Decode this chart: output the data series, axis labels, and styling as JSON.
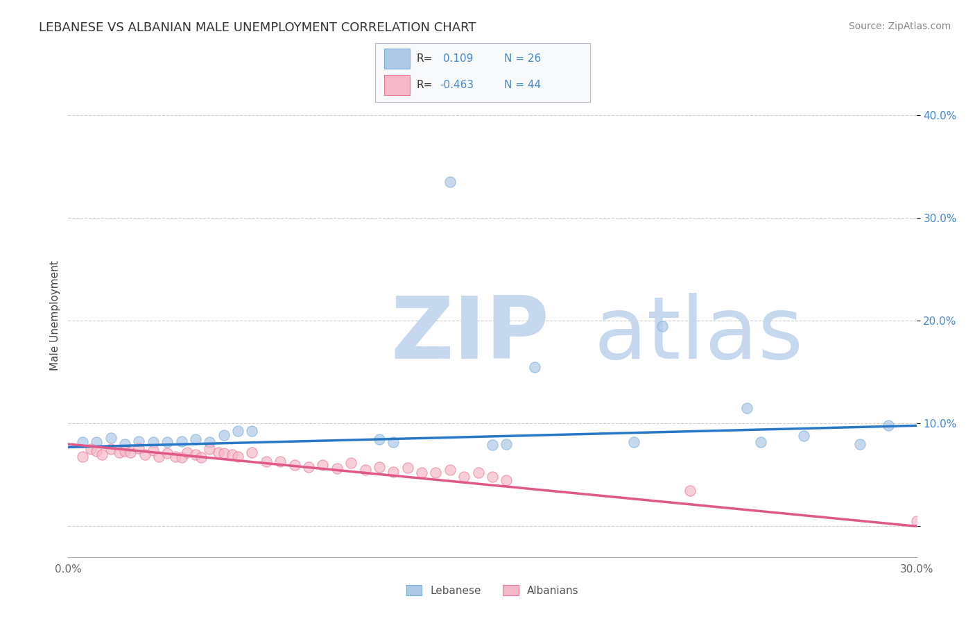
{
  "title": "LEBANESE VS ALBANIAN MALE UNEMPLOYMENT CORRELATION CHART",
  "source_text": "Source: ZipAtlas.com",
  "ylabel": "Male Unemployment",
  "xmin": 0.0,
  "xmax": 0.3,
  "ymin": -0.03,
  "ymax": 0.44,
  "yticks": [
    0.0,
    0.1,
    0.2,
    0.3,
    0.4
  ],
  "ytick_labels": [
    "",
    "10.0%",
    "20.0%",
    "30.0%",
    "40.0%"
  ],
  "xticks": [
    0.0,
    0.3
  ],
  "xtick_labels": [
    "0.0%",
    "30.0%"
  ],
  "background_color": "#ffffff",
  "grid_color": "#cccccc",
  "watermark_zip": "ZIP",
  "watermark_atlas": "atlas",
  "watermark_color_zip": "#c5d8ee",
  "watermark_color_atlas": "#c5d8ee",
  "legend_r1_label": "R = ",
  "legend_r1_val": " 0.109",
  "legend_n1_label": "N = ",
  "legend_n1_val": "26",
  "legend_r2_label": "R = ",
  "legend_r2_val": "-0.463",
  "legend_n2_label": "N = ",
  "legend_n2_val": "44",
  "legend_label1": "Lebanese",
  "legend_label2": "Albanians",
  "blue_fill_color": "#aec8e8",
  "blue_edge_color": "#7bafd4",
  "pink_fill_color": "#f4b8c8",
  "pink_edge_color": "#e87898",
  "blue_line_color": "#2878c8",
  "pink_line_color": "#e05888",
  "tick_color_blue": "#4488cc",
  "title_fontsize": 13,
  "source_fontsize": 10,
  "label_fontsize": 11,
  "tick_fontsize": 11,
  "blue_scatter_x": [
    0.135,
    0.21,
    0.005,
    0.01,
    0.015,
    0.02,
    0.025,
    0.03,
    0.035,
    0.04,
    0.045,
    0.05,
    0.055,
    0.06,
    0.065,
    0.11,
    0.115,
    0.155,
    0.165,
    0.2,
    0.245,
    0.26,
    0.28,
    0.29,
    0.24,
    0.15
  ],
  "blue_scatter_y": [
    0.335,
    0.195,
    0.082,
    0.082,
    0.086,
    0.08,
    0.083,
    0.082,
    0.082,
    0.083,
    0.085,
    0.082,
    0.089,
    0.093,
    0.093,
    0.085,
    0.082,
    0.08,
    0.155,
    0.082,
    0.082,
    0.088,
    0.08,
    0.098,
    0.115,
    0.079
  ],
  "pink_scatter_x": [
    0.005,
    0.008,
    0.01,
    0.012,
    0.015,
    0.018,
    0.02,
    0.022,
    0.025,
    0.027,
    0.03,
    0.032,
    0.035,
    0.038,
    0.04,
    0.042,
    0.045,
    0.047,
    0.05,
    0.053,
    0.055,
    0.058,
    0.06,
    0.065,
    0.07,
    0.075,
    0.08,
    0.085,
    0.09,
    0.095,
    0.1,
    0.105,
    0.11,
    0.115,
    0.12,
    0.125,
    0.13,
    0.135,
    0.14,
    0.145,
    0.15,
    0.155,
    0.22,
    0.3
  ],
  "pink_scatter_y": [
    0.068,
    0.075,
    0.073,
    0.07,
    0.075,
    0.072,
    0.073,
    0.072,
    0.076,
    0.07,
    0.074,
    0.068,
    0.071,
    0.068,
    0.067,
    0.072,
    0.07,
    0.067,
    0.075,
    0.072,
    0.071,
    0.07,
    0.068,
    0.072,
    0.063,
    0.063,
    0.06,
    0.058,
    0.06,
    0.056,
    0.062,
    0.055,
    0.058,
    0.053,
    0.057,
    0.052,
    0.052,
    0.055,
    0.048,
    0.052,
    0.048,
    0.045,
    0.035,
    0.005
  ],
  "blue_trend_x": [
    0.0,
    0.3
  ],
  "blue_trend_y": [
    0.077,
    0.098
  ],
  "pink_trend_x": [
    0.0,
    0.3
  ],
  "pink_trend_y": [
    0.08,
    0.0
  ]
}
